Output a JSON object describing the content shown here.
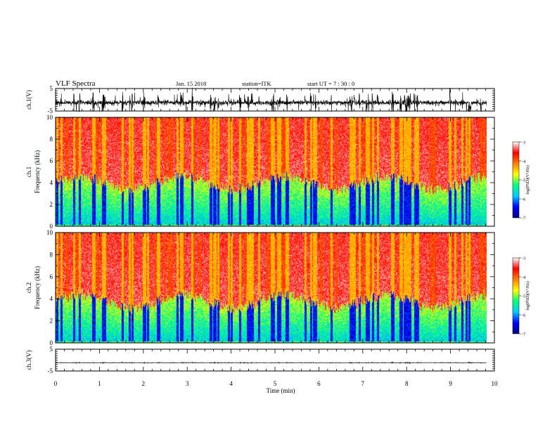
{
  "header": {
    "title": "VLF Spectra",
    "date": "Jan. 15  2018",
    "station": "station=ITK",
    "start_ut": "start  UT  =   7 : 30 : 0"
  },
  "chart_data": [
    {
      "type": "line",
      "panel": "ch1-waveform",
      "ylabel": "ch.1(V)",
      "ylim": [
        -5,
        5
      ],
      "yticks": [
        "5",
        "-5"
      ],
      "xlim": [
        0,
        10
      ],
      "trace": {
        "baseline": -1.3,
        "noise_sd": 0.55,
        "spike_max": 4.5,
        "end_time": 9.82
      }
    },
    {
      "type": "heatmap",
      "panel": "ch1-spectrogram",
      "ylabel": "ch.1\nFrequency (kHz)",
      "ylim": [
        0,
        10
      ],
      "yticks": [
        "0",
        "2",
        "4",
        "6",
        "8",
        "10"
      ],
      "xlim": [
        0,
        9.82
      ],
      "boundary_khz": 4.0,
      "color_scale": {
        "label": "log(PSD)(V²/Hz)",
        "range": [
          -7,
          -3
        ],
        "ticks": [
          "-3",
          "-4",
          "-5",
          "-6",
          "-7"
        ],
        "colors": [
          "#000080",
          "#0000ff",
          "#00c8ff",
          "#00ff80",
          "#ffff00",
          "#ff8000",
          "#ff0000",
          "#ffffff"
        ]
      }
    },
    {
      "type": "heatmap",
      "panel": "ch2-spectrogram",
      "ylabel": "ch.2\nFrequency (kHz)",
      "ylim": [
        0,
        10
      ],
      "yticks": [
        "0",
        "2",
        "4",
        "6",
        "8",
        "10"
      ],
      "xlim": [
        0,
        9.82
      ],
      "boundary_khz": 3.8,
      "color_scale": {
        "label": "log(PSD)(V²/Hz)",
        "range": [
          -7,
          -3
        ],
        "ticks": [
          "-3",
          "-4",
          "-5",
          "-6",
          "-7"
        ],
        "colors": [
          "#000080",
          "#0000ff",
          "#00c8ff",
          "#00ff80",
          "#ffff00",
          "#ff8000",
          "#ff0000",
          "#ffffff"
        ]
      }
    },
    {
      "type": "line",
      "panel": "ch3-waveform",
      "ylabel": "ch.3(V)",
      "ylim": [
        -5,
        5
      ],
      "yticks": [
        "5",
        "-5"
      ],
      "xlim": [
        0,
        10
      ],
      "trace": {
        "baseline": -1.2,
        "noise_sd": 0.05,
        "spike_max": 0.2,
        "end_time": 9.82
      }
    }
  ],
  "x_axis": {
    "label": "Time (min)",
    "ticks": [
      "0",
      "1",
      "2",
      "3",
      "4",
      "5",
      "6",
      "7",
      "8",
      "9",
      "10"
    ]
  }
}
